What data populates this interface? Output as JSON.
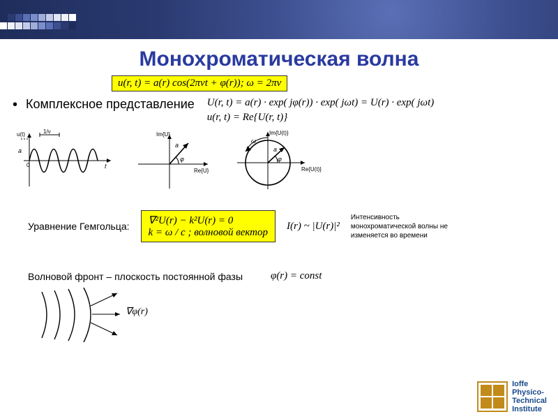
{
  "header": {
    "ripple_bg": "#2a3a70",
    "deco_colors_top": [
      "#1f2d5c",
      "#2a3a70",
      "#3d4f8f",
      "#5a6fb5",
      "#7b8dcb",
      "#a0add9",
      "#c4cce8",
      "#e0e4f3",
      "#f0f2fa",
      "#ffffff"
    ],
    "deco_colors_bot": [
      "#ffffff",
      "#f0f2fa",
      "#e0e4f3",
      "#c4cce8",
      "#a0add9",
      "#7b8dcb",
      "#5a6fb5",
      "#3d4f8f",
      "#2a3a70",
      "#1f2d5c"
    ]
  },
  "title": {
    "text": "Монохроматическая волна",
    "color": "#2a3a9f",
    "fontsize": 30
  },
  "eq1": {
    "text": "u(r, t) = a(r) cos(2πνt + φ(r));  ω = 2πν",
    "bg": "#ffff00",
    "border": "#333333"
  },
  "bullet1": {
    "label": "Комплексное представление"
  },
  "eq2a": "U(r, t) = a(r) · exp( jφ(r)) · exp( jωt) = U(r) · exp( jωt)",
  "eq2b": "u(r, t) = Re{U(r, t)}",
  "diagrams": {
    "sine": {
      "label_y": "u(t)",
      "label_a": "a",
      "label_period": "1/ν",
      "axis": "t"
    },
    "vector": {
      "label_y": "Im{U}",
      "label_x": "Re{U}",
      "angle_label": "φ",
      "vec_label": "a"
    },
    "circle": {
      "label_y": "Im{U(t)}",
      "label_x": "Re{U(t)}",
      "omega": "ω",
      "vec": "a",
      "phi": "φ"
    }
  },
  "row2": {
    "label": "Уравнение Гемгольца:",
    "eq_box": {
      "line1": "∇²U(r) − k²U(r) = 0",
      "line2": "k = ω / c ;  волновой вектор",
      "bg": "#ffff00",
      "border": "#333333"
    },
    "intensity_eq": "I(r) ~ |U(r)|²",
    "intensity_note": "Интенсивность монохроматической волны не изменяется во времени"
  },
  "row3": {
    "label": "Волновой фронт – плоскость постоянной фазы",
    "eq": "φ(r) = const",
    "grad_label": "∇φ(r)"
  },
  "logo": {
    "color": "#c28a1a",
    "text_color": "#1a4a8a",
    "lines": [
      "Ioffe",
      "Physico-",
      "Technical",
      "Institute"
    ]
  }
}
